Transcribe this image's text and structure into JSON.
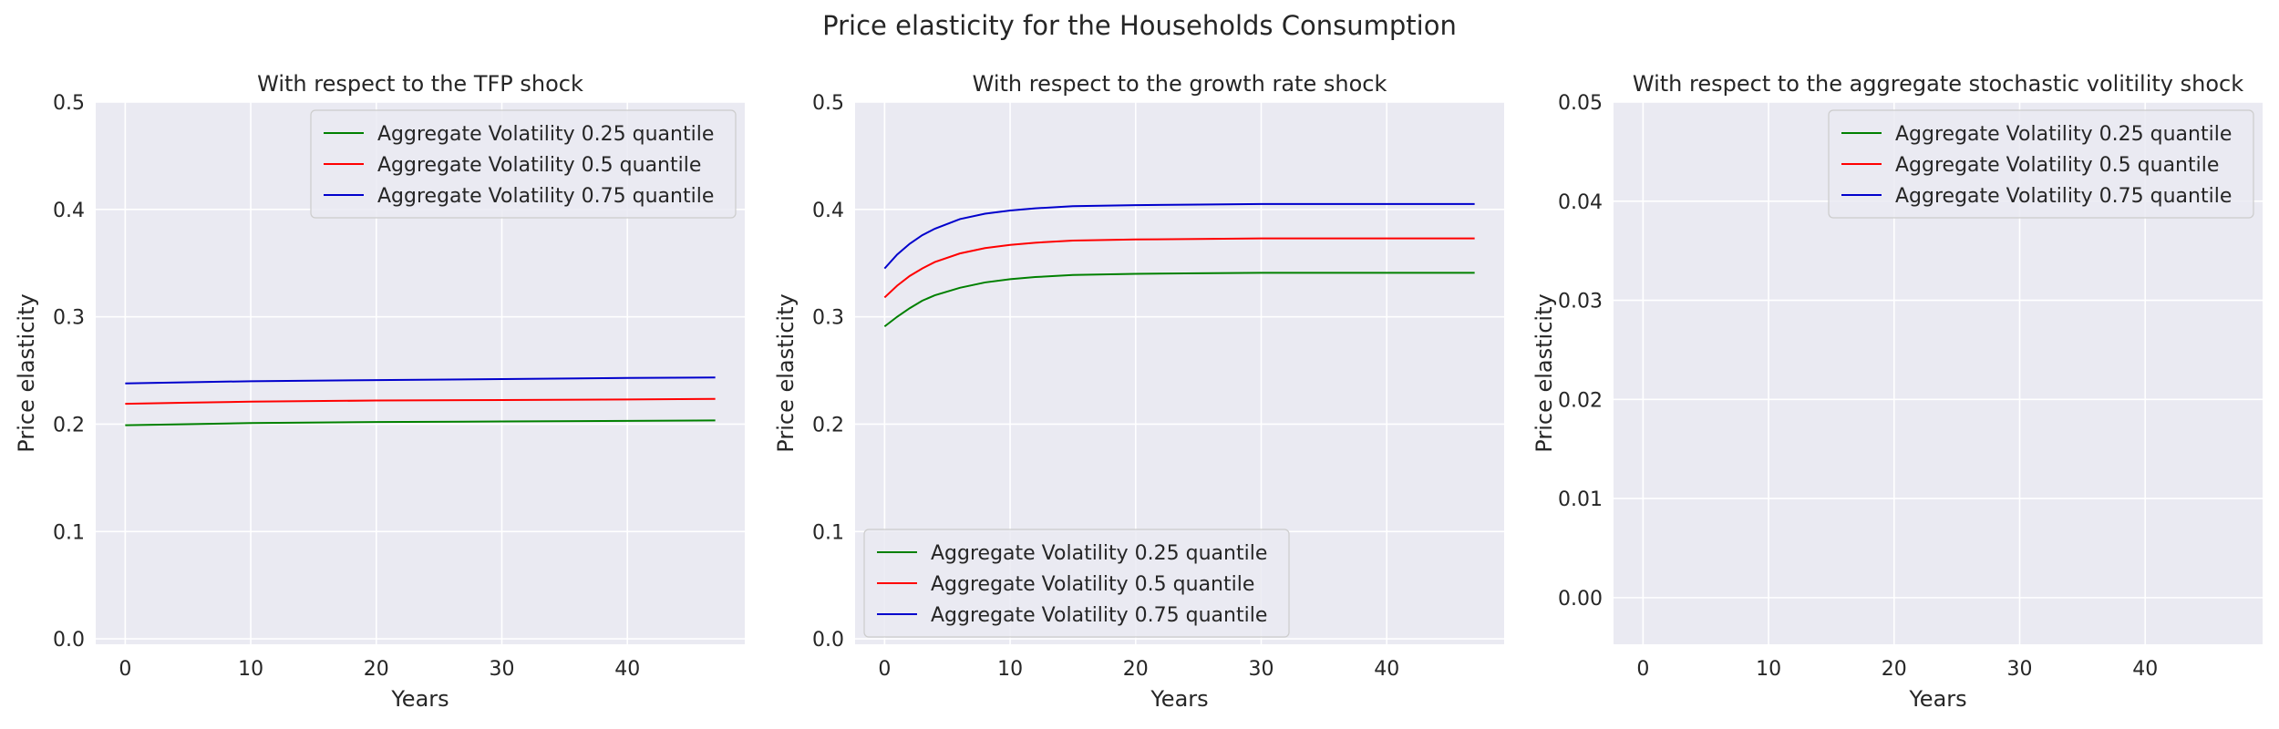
{
  "figure": {
    "title": "Price elasticity for the Households Consumption"
  },
  "chart_data": [
    {
      "type": "line",
      "title": "With respect to the TFP shock",
      "xlabel": "Years",
      "ylabel": "Price elasticity",
      "xlim": [
        -2.35,
        49.35
      ],
      "ylim": [
        -0.005,
        0.5
      ],
      "xticks": [
        0,
        10,
        20,
        30,
        40
      ],
      "yticks": [
        0.0,
        0.1,
        0.2,
        0.3,
        0.4,
        0.5
      ],
      "ytick_decimals": 1,
      "grid": true,
      "legend_position": "upper right",
      "series": [
        {
          "name": "Aggregate Volatility 0.25 quantile",
          "color": "#008000",
          "x": [
            0,
            5,
            10,
            20,
            30,
            40,
            47
          ],
          "y": [
            0.199,
            0.2,
            0.201,
            0.202,
            0.2025,
            0.203,
            0.2035
          ]
        },
        {
          "name": "Aggregate Volatility 0.5 quantile",
          "color": "#ff0000",
          "x": [
            0,
            5,
            10,
            20,
            30,
            40,
            47
          ],
          "y": [
            0.219,
            0.22,
            0.221,
            0.222,
            0.2225,
            0.223,
            0.2235
          ]
        },
        {
          "name": "Aggregate Volatility 0.75 quantile",
          "color": "#0000cc",
          "x": [
            0,
            5,
            10,
            20,
            30,
            40,
            47
          ],
          "y": [
            0.238,
            0.239,
            0.24,
            0.241,
            0.242,
            0.243,
            0.2435
          ]
        }
      ]
    },
    {
      "type": "line",
      "title": "With respect to the growth rate shock",
      "xlabel": "Years",
      "ylabel": "Price elasticity",
      "xlim": [
        -2.35,
        49.35
      ],
      "ylim": [
        -0.005,
        0.5
      ],
      "xticks": [
        0,
        10,
        20,
        30,
        40
      ],
      "yticks": [
        0.0,
        0.1,
        0.2,
        0.3,
        0.4,
        0.5
      ],
      "ytick_decimals": 1,
      "grid": true,
      "legend_position": "lower left",
      "series": [
        {
          "name": "Aggregate Volatility 0.25 quantile",
          "color": "#008000",
          "x": [
            0,
            1,
            2,
            3,
            4,
            6,
            8,
            10,
            12,
            15,
            20,
            25,
            30,
            40,
            47
          ],
          "y": [
            0.291,
            0.3,
            0.308,
            0.315,
            0.32,
            0.327,
            0.332,
            0.335,
            0.337,
            0.339,
            0.34,
            0.3405,
            0.341,
            0.341,
            0.341
          ]
        },
        {
          "name": "Aggregate Volatility 0.5 quantile",
          "color": "#ff0000",
          "x": [
            0,
            1,
            2,
            3,
            4,
            6,
            8,
            10,
            12,
            15,
            20,
            25,
            30,
            40,
            47
          ],
          "y": [
            0.318,
            0.329,
            0.338,
            0.345,
            0.351,
            0.359,
            0.364,
            0.367,
            0.369,
            0.371,
            0.372,
            0.3725,
            0.373,
            0.373,
            0.373
          ]
        },
        {
          "name": "Aggregate Volatility 0.75 quantile",
          "color": "#0000cc",
          "x": [
            0,
            1,
            2,
            3,
            4,
            6,
            8,
            10,
            12,
            15,
            20,
            25,
            30,
            40,
            47
          ],
          "y": [
            0.345,
            0.358,
            0.368,
            0.376,
            0.382,
            0.391,
            0.396,
            0.399,
            0.401,
            0.403,
            0.404,
            0.4045,
            0.405,
            0.405,
            0.405
          ]
        }
      ]
    },
    {
      "type": "line",
      "title": "With respect to the aggregate stochastic volitility shock",
      "xlabel": "Years",
      "ylabel": "Price elasticity",
      "xlim": [
        -2.35,
        49.35
      ],
      "ylim": [
        -0.0047,
        0.05
      ],
      "xticks": [
        0,
        10,
        20,
        30,
        40
      ],
      "yticks": [
        0.0,
        0.01,
        0.02,
        0.03,
        0.04,
        0.05
      ],
      "ytick_decimals": 2,
      "grid": true,
      "legend_position": "upper right",
      "series": [
        {
          "name": "Aggregate Volatility 0.25 quantile",
          "color": "#008000",
          "x": [],
          "y": []
        },
        {
          "name": "Aggregate Volatility 0.5 quantile",
          "color": "#ff0000",
          "x": [],
          "y": []
        },
        {
          "name": "Aggregate Volatility 0.75 quantile",
          "color": "#0000cc",
          "x": [],
          "y": []
        }
      ]
    }
  ]
}
